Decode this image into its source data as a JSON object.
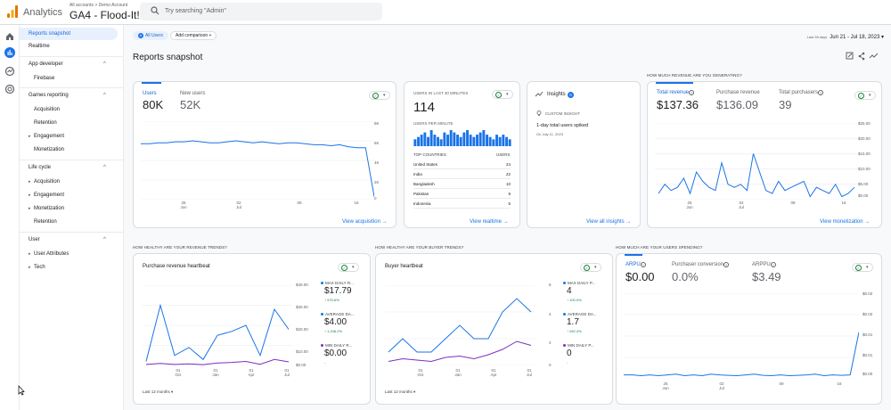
{
  "header": {
    "brand": "Analytics",
    "breadcrumb": "All accounts > Demo Account",
    "property": "GA4 - Flood-It!",
    "search_placeholder": "Try searching \"Admin\""
  },
  "rail": {
    "items": [
      "home-icon",
      "reports-icon",
      "explore-icon",
      "advertising-icon"
    ]
  },
  "sidebar": {
    "top_items": [
      "Reports snapshot",
      "Realtime"
    ],
    "sections": [
      {
        "title": "App developer",
        "items": [
          "Firebase"
        ]
      },
      {
        "title": "Games reporting",
        "items": [
          "Acquisition",
          "Retention",
          "Engagement",
          "Monetization"
        ]
      },
      {
        "title": "Life cycle",
        "items": [
          "Acquisition",
          "Engagement",
          "Monetization",
          "Retention"
        ]
      },
      {
        "title": "User",
        "items": [
          "User Attributes",
          "Tech"
        ]
      }
    ]
  },
  "toolbar": {
    "segment_chip": "All Users",
    "add_comparison": "Add comparison",
    "date_prefix": "Last 28 days",
    "date_range": "Jun 21 - Jul 18, 2023"
  },
  "page": {
    "title": "Reports snapshot"
  },
  "colors": {
    "accent": "#1a73e8",
    "secondary": "#7b2fbe",
    "success": "#188038"
  },
  "users_card": {
    "metric1_label": "Users",
    "metric1_value": "80K",
    "metric2_label": "New users",
    "metric2_value": "52K",
    "y_ticks": [
      "8K",
      "6K",
      "4K",
      "2K",
      "0"
    ],
    "x_ticks": [
      "25\nJun",
      "02\nJul",
      "09",
      "16"
    ],
    "link": "View acquisition",
    "chart_data": {
      "type": "line",
      "x": [
        "Jun 21",
        "Jun 22",
        "Jun 23",
        "Jun 24",
        "Jun 25",
        "Jun 26",
        "Jun 27",
        "Jun 28",
        "Jun 29",
        "Jun 30",
        "Jul 01",
        "Jul 02",
        "Jul 03",
        "Jul 04",
        "Jul 05",
        "Jul 06",
        "Jul 07",
        "Jul 08",
        "Jul 09",
        "Jul 10",
        "Jul 11",
        "Jul 12",
        "Jul 13",
        "Jul 14",
        "Jul 15",
        "Jul 16",
        "Jul 17",
        "Jul 18"
      ],
      "values": [
        5.7,
        5.7,
        5.8,
        5.8,
        5.9,
        5.9,
        6.0,
        5.9,
        5.8,
        5.8,
        5.9,
        6.0,
        5.9,
        5.8,
        5.9,
        5.8,
        5.7,
        5.8,
        5.8,
        5.7,
        5.6,
        5.6,
        5.5,
        5.6,
        5.4,
        5.3,
        5.3,
        0.3
      ],
      "ylim": [
        0,
        8
      ]
    }
  },
  "realtime_card": {
    "heading": "USERS IN LAST 30 MINUTES",
    "value": "114",
    "per_minute": "USERS PER MINUTE",
    "col_country": "TOP COUNTRIES",
    "col_users": "USERS",
    "rows": [
      {
        "country": "United States",
        "users": "24"
      },
      {
        "country": "India",
        "users": "22"
      },
      {
        "country": "Bangladesh",
        "users": "10"
      },
      {
        "country": "Pakistan",
        "users": "9"
      },
      {
        "country": "Indonesia",
        "users": "5"
      }
    ],
    "link": "View realtime",
    "bars": [
      3,
      4,
      5,
      6,
      4,
      7,
      5,
      4,
      3,
      6,
      5,
      7,
      6,
      5,
      4,
      6,
      7,
      5,
      4,
      5,
      6,
      7,
      5,
      4,
      3,
      5,
      4,
      5,
      4,
      3
    ]
  },
  "insights_card": {
    "title": "Insights",
    "count": "0",
    "label": "CUSTOM INSIGHT",
    "headline": "1-day total users spiked",
    "date": "On July 11, 2023",
    "link": "View all insights"
  },
  "revenue_card": {
    "section": "HOW MUCH REVENUE ARE YOU GENERATING?",
    "m1_label": "Total revenue",
    "m1_value": "$137.36",
    "m2_label": "Purchase revenue",
    "m2_value": "$136.09",
    "m3_label": "Total purchasers",
    "m3_value": "39",
    "y_ticks": [
      "$25.00",
      "$20.00",
      "$15.00",
      "$10.00",
      "$5.00",
      "$0.00"
    ],
    "x_ticks": [
      "25\nJun",
      "02\nJul",
      "09",
      "16"
    ],
    "link": "View monetization",
    "chart_data": {
      "type": "line",
      "values": [
        2,
        5,
        3,
        4,
        7,
        2,
        9,
        6,
        4,
        3,
        12,
        5,
        4,
        5,
        3,
        15,
        9,
        3,
        2,
        6,
        3,
        4,
        5,
        6,
        1,
        4,
        3,
        2,
        5,
        1,
        2,
        4
      ],
      "ylim": [
        0,
        25
      ]
    }
  },
  "heartbeat_card": {
    "section": "HOW HEALTHY ARE YOUR REVENUE TRENDS?",
    "title": "Purchase revenue heartbeat",
    "y_ticks": [
      "$40.00",
      "$30.00",
      "$20.00",
      "$10.00",
      "$0.00"
    ],
    "x_ticks": [
      "01\nOct",
      "01\nJan",
      "01\nApr",
      "01\nJul"
    ],
    "legend": [
      {
        "label": "MAX DAILY R...",
        "value": "$17.79",
        "change": "↑ 975.6%",
        "color": "#1a73e8"
      },
      {
        "label": "AVERAGE DA...",
        "value": "$4.00",
        "change": "↑ 1,246.2%",
        "color": "#1a73e8"
      },
      {
        "label": "MIN DAILY R...",
        "value": "$0.00",
        "change": "-",
        "color": "#7b2fbe"
      }
    ],
    "footer": "Last 12 months",
    "chart_data": {
      "type": "line",
      "series": [
        {
          "values": [
            2,
            30,
            5,
            9,
            3,
            15,
            17,
            20,
            5,
            28,
            18
          ]
        },
        {
          "values": [
            0.5,
            1,
            0.5,
            0.8,
            0.4,
            1.2,
            1.5,
            2,
            0.6,
            3,
            1.8
          ]
        }
      ],
      "ylim": [
        0,
        40
      ]
    }
  },
  "buyer_card": {
    "section": "HOW HEALTHY ARE YOUR BUYER TRENDS?",
    "title": "Buyer heartbeat",
    "y_ticks": [
      "6",
      "4",
      "2",
      "0"
    ],
    "x_ticks": [
      "01\nOct",
      "01\nJan",
      "01\nApr",
      "01\nJul"
    ],
    "legend": [
      {
        "label": "MAX DAILY P...",
        "value": "4",
        "change": "↑ 100.0%",
        "color": "#1a73e8"
      },
      {
        "label": "AVERAGE DA...",
        "value": "1.7",
        "change": "↑ 262.4%",
        "color": "#1a73e8"
      },
      {
        "label": "MIN DAILY P...",
        "value": "0",
        "change": "-",
        "color": "#7b2fbe"
      }
    ],
    "footer": "Last 12 months",
    "chart_data": {
      "type": "line",
      "series": [
        {
          "values": [
            1,
            2,
            1,
            1,
            2,
            3,
            2,
            2,
            4,
            5,
            4
          ]
        },
        {
          "values": [
            0.3,
            0.5,
            0.4,
            0.3,
            0.6,
            0.7,
            0.5,
            0.8,
            1.2,
            1.8,
            1.5
          ]
        }
      ],
      "ylim": [
        0,
        6
      ]
    }
  },
  "spending_card": {
    "section": "HOW MUCH ARE YOUR USERS SPENDING?",
    "m1_label": "ARPU",
    "m1_value": "$0.00",
    "m2_label": "Purchaser conversion",
    "m2_value": "0.0%",
    "m3_label": "ARPPU",
    "m3_value": "$3.49",
    "y_ticks": [
      "$0.02",
      "$0.02",
      "$0.01",
      "$0.01",
      "$0.00"
    ],
    "x_ticks": [
      "25\nJun",
      "02\nJul",
      "09",
      "16"
    ],
    "chart_data": {
      "type": "line",
      "values": [
        0.001,
        0.001,
        0.0008,
        0.001,
        0.0008,
        0.001,
        0.0012,
        0.0008,
        0.001,
        0.0008,
        0.0012,
        0.001,
        0.0009,
        0.0008,
        0.001,
        0.0012,
        0.0009,
        0.0008,
        0.001,
        0.0008,
        0.0009,
        0.001,
        0.0012,
        0.0008,
        0.001,
        0.0009,
        0.001,
        0.012
      ],
      "ylim": [
        0,
        0.022
      ]
    }
  }
}
